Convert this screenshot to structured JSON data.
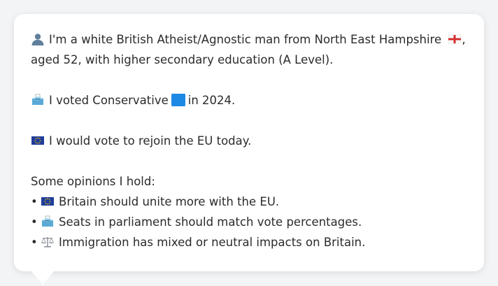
{
  "profile": {
    "line1_a": "I'm a white British Atheist/Agnostic man from North East Hampshire",
    "line1_b": ",",
    "line2": "aged 52, with higher secondary education (A Level).",
    "vote_a": "I voted Conservative",
    "vote_b": "in 2024.",
    "eu_stance": "I would vote to rejoin the EU today.",
    "opinions_heading": "Some opinions I hold:",
    "opinions": [
      {
        "bullet": "•",
        "icon": "eu-flag-icon",
        "text": "Britain should unite more with the EU."
      },
      {
        "bullet": "•",
        "icon": "ballot-box-icon",
        "text": "Seats in parliament should match vote percentages."
      },
      {
        "bullet": "•",
        "icon": "scales-icon",
        "text": "Immigration has mixed or neutral impacts on Britain."
      }
    ]
  },
  "icons": {
    "person": "person-silhouette-icon",
    "england_flag": "england-flag-icon",
    "ballot": "ballot-box-icon",
    "party_square": "blue-square-icon",
    "eu": "eu-flag-icon",
    "scales": "scales-icon"
  },
  "colors": {
    "card_background": "#ffffff",
    "page_background": "#f3f4f6",
    "text": "#2b2b2b",
    "conservative_blue": "#1e88e5",
    "eu_blue": "#1f3d99",
    "england_red": "#d32f2f"
  }
}
